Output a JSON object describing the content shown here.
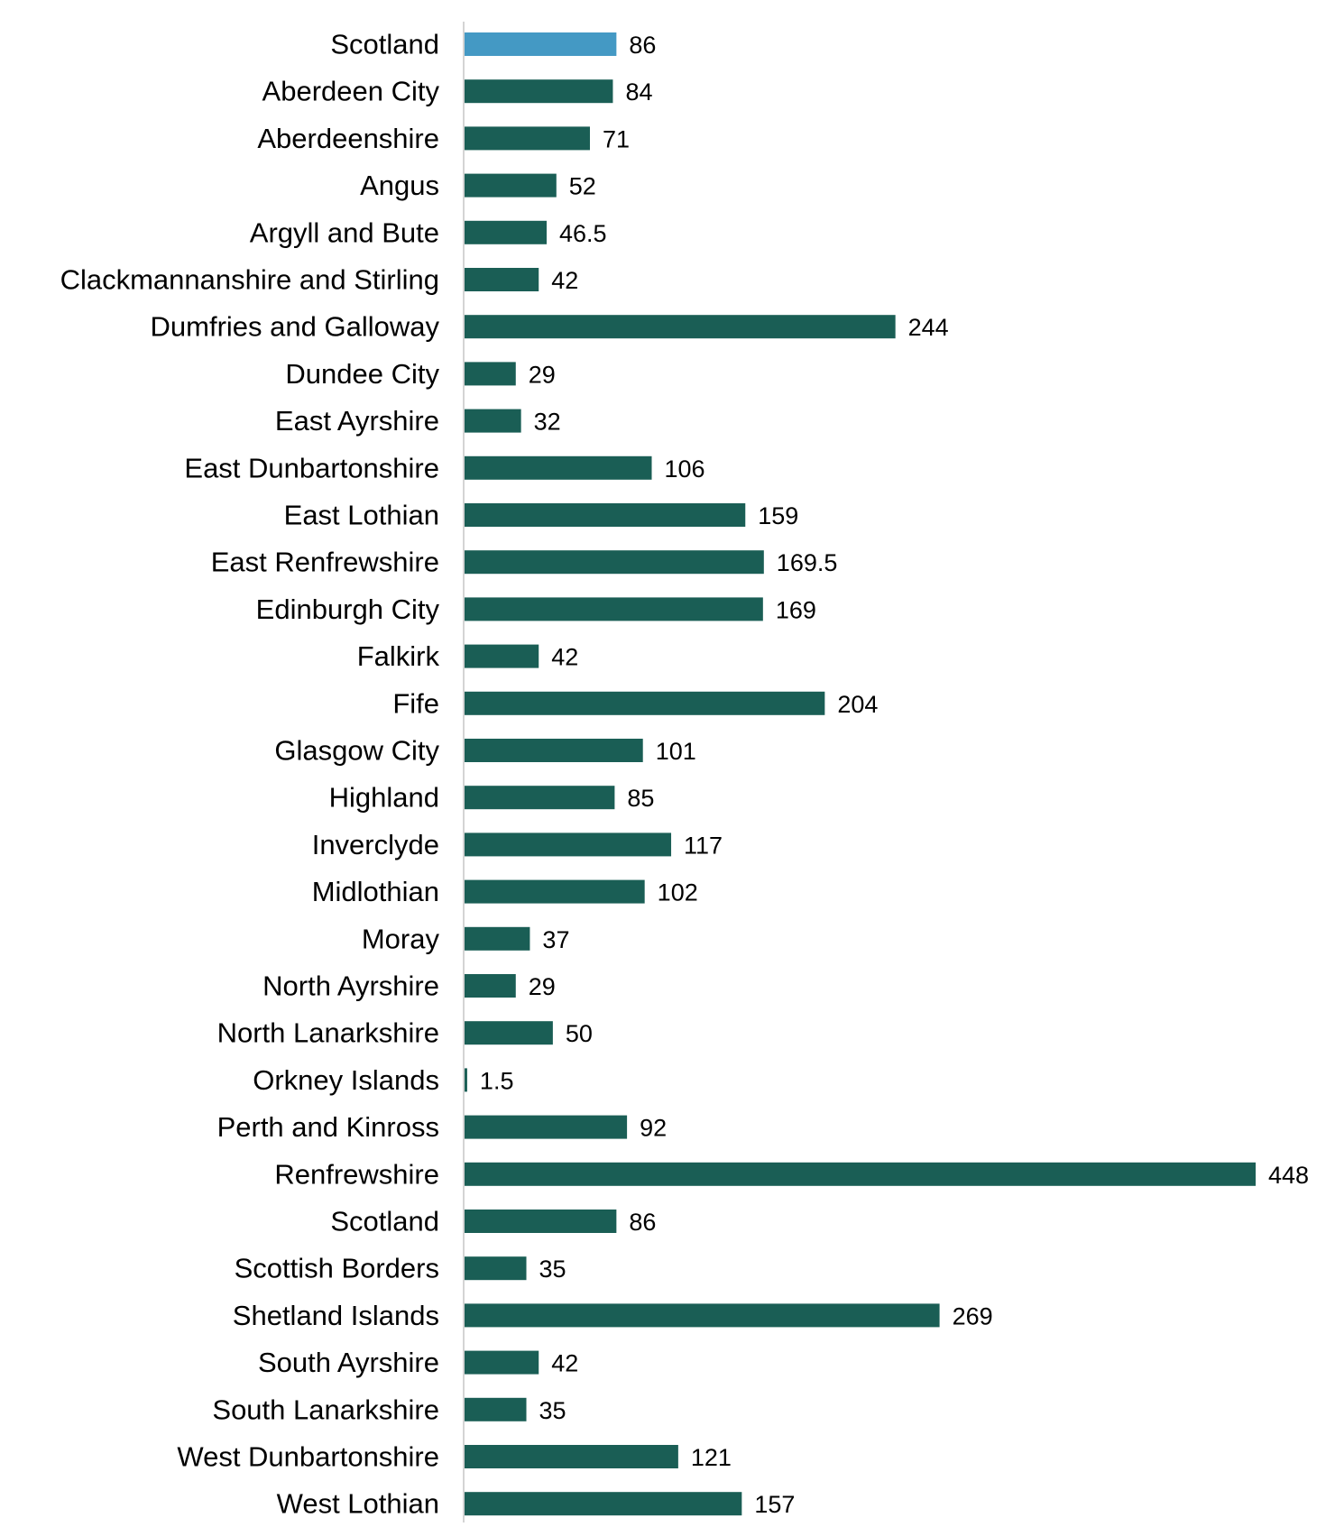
{
  "chart_data": {
    "type": "bar",
    "orientation": "horizontal",
    "title": "",
    "xlabel": "",
    "ylabel": "",
    "grid": false,
    "legend": "none",
    "xlim": [
      0,
      448
    ],
    "categories": [
      "Scotland",
      "Aberdeen City",
      "Aberdeenshire",
      "Angus",
      "Argyll and Bute",
      "Clackmannanshire and Stirling",
      "Dumfries and Galloway",
      "Dundee City",
      "East Ayrshire",
      "East Dunbartonshire",
      "East Lothian",
      "East Renfrewshire",
      "Edinburgh City",
      "Falkirk",
      "Fife",
      "Glasgow City",
      "Highland",
      "Inverclyde",
      "Midlothian",
      "Moray",
      "North Ayrshire",
      "North Lanarkshire",
      "Orkney Islands",
      "Perth and Kinross",
      "Renfrewshire",
      "Scotland",
      "Scottish Borders",
      "Shetland Islands",
      "South Ayrshire",
      "South Lanarkshire",
      "West Dunbartonshire",
      "West Lothian"
    ],
    "values": [
      86,
      84,
      71,
      52,
      46.5,
      42,
      244,
      29,
      32,
      106,
      159,
      169.5,
      169,
      42,
      204,
      101,
      85,
      117,
      102,
      37,
      29,
      50,
      1.5,
      92,
      448,
      86,
      35,
      269,
      42,
      35,
      121,
      157
    ],
    "value_labels": [
      "86",
      "84",
      "71",
      "52",
      "46.5",
      "42",
      "244",
      "29",
      "32",
      "106",
      "159",
      "169.5",
      "169",
      "42",
      "204",
      "101",
      "85",
      "117",
      "102",
      "37",
      "29",
      "50",
      "1.5",
      "92",
      "448",
      "86",
      "35",
      "269",
      "42",
      "35",
      "121",
      "157"
    ],
    "highlight_index": 0,
    "colors": {
      "bar": "#1a5e55",
      "highlight": "#4499c4",
      "axis": "#d4d4d4",
      "text": "#000000"
    }
  }
}
